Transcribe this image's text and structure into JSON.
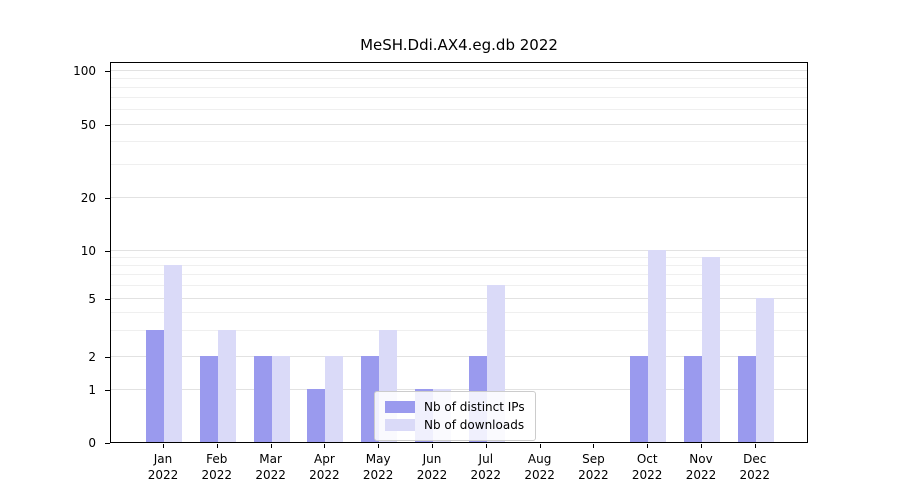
{
  "chart_data": {
    "type": "bar",
    "title": "MeSH.Ddi.AX4.eg.db 2022",
    "categories": [
      "Jan",
      "Feb",
      "Mar",
      "Apr",
      "May",
      "Jun",
      "Jul",
      "Aug",
      "Sep",
      "Oct",
      "Nov",
      "Dec"
    ],
    "year": "2022",
    "series": [
      {
        "name": "Nb of distinct IPs",
        "color": "#9a9aee",
        "values": [
          3,
          2,
          2,
          1,
          2,
          1,
          2,
          0,
          0,
          2,
          2,
          2
        ]
      },
      {
        "name": "Nb of downloads",
        "color": "#dadaf8",
        "values": [
          8,
          3,
          2,
          2,
          3,
          1,
          6,
          0,
          0,
          10,
          9,
          5
        ]
      }
    ],
    "yticks": [
      0,
      1,
      2,
      5,
      10,
      20,
      50,
      100
    ],
    "minor_yticks": [
      3,
      4,
      6,
      7,
      8,
      9,
      30,
      40,
      60,
      70,
      80,
      90
    ],
    "ylim": [
      0,
      110
    ],
    "scale": "symlog",
    "grid": true,
    "legend_position": "lower center"
  }
}
